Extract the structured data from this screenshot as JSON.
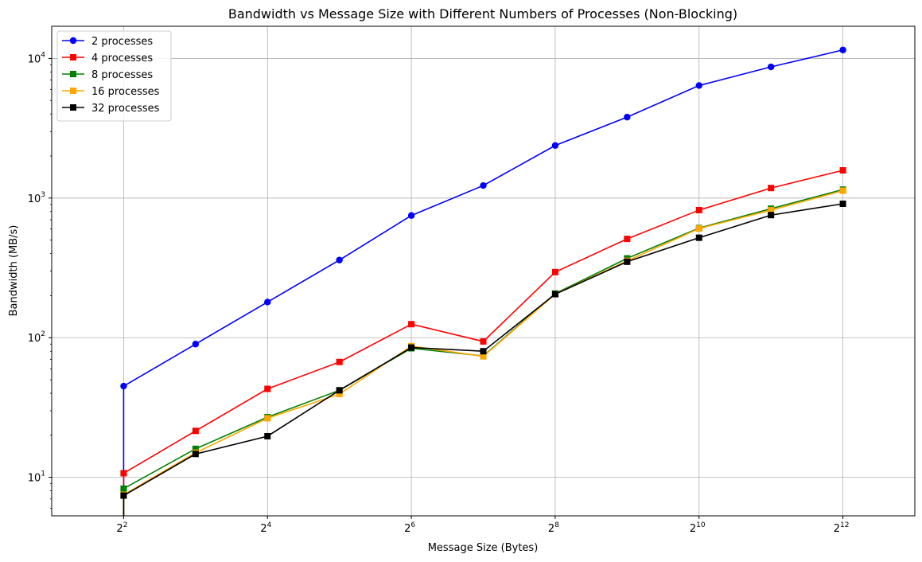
{
  "chart_data": {
    "type": "line",
    "title": "Bandwidth vs Message Size with Different Numbers of Processes (Non-Blocking)",
    "xlabel": "Message Size (Bytes)",
    "ylabel": "Bandwidth (MB/s)",
    "xscale": "log2",
    "yscale": "log10",
    "xlim": [
      2,
      8192
    ],
    "ylim": [
      5.3,
      17000
    ],
    "x_ticks": [
      {
        "base": "2",
        "exp": "2",
        "value": 4
      },
      {
        "base": "2",
        "exp": "4",
        "value": 16
      },
      {
        "base": "2",
        "exp": "6",
        "value": 64
      },
      {
        "base": "2",
        "exp": "8",
        "value": 256
      },
      {
        "base": "2",
        "exp": "10",
        "value": 1024
      },
      {
        "base": "2",
        "exp": "12",
        "value": 4096
      }
    ],
    "y_ticks": [
      {
        "base": "10",
        "exp": "1",
        "value": 10
      },
      {
        "base": "10",
        "exp": "2",
        "value": 100
      },
      {
        "base": "10",
        "exp": "3",
        "value": 1000
      },
      {
        "base": "10",
        "exp": "4",
        "value": 10000
      }
    ],
    "grid": true,
    "legend_position": "top-left",
    "series": [
      {
        "name": "2 processes",
        "color": "#0000ff",
        "marker": "circle",
        "x": [
          4,
          4,
          8,
          16,
          32,
          64,
          128,
          256,
          512,
          1024,
          2048,
          4096
        ],
        "y": [
          5.3,
          45,
          90,
          180,
          360,
          750,
          1230,
          2380,
          3800,
          6400,
          8700,
          11500
        ]
      },
      {
        "name": "4 processes",
        "color": "#ff0000",
        "marker": "square",
        "x": [
          4,
          4,
          8,
          16,
          32,
          64,
          128,
          256,
          512,
          1024,
          2048,
          4096
        ],
        "y": [
          5.3,
          10.7,
          21.5,
          43,
          67,
          125,
          94,
          295,
          510,
          820,
          1180,
          1580
        ]
      },
      {
        "name": "8 processes",
        "color": "#008000",
        "marker": "square",
        "x": [
          4,
          4,
          8,
          16,
          32,
          64,
          128,
          256,
          512,
          1024,
          2048,
          4096
        ],
        "y": [
          5.3,
          8.3,
          16,
          27,
          42,
          84,
          74,
          207,
          370,
          610,
          840,
          1150
        ]
      },
      {
        "name": "16 processes",
        "color": "#ffa500",
        "marker": "square",
        "x": [
          4,
          4,
          8,
          16,
          32,
          64,
          128,
          256,
          512,
          1024,
          2048,
          4096
        ],
        "y": [
          5.3,
          7.5,
          15,
          26.5,
          39.5,
          87,
          73.5,
          205,
          355,
          605,
          820,
          1130
        ]
      },
      {
        "name": "32 processes",
        "color": "#000000",
        "marker": "square",
        "x": [
          4,
          4,
          8,
          16,
          32,
          64,
          128,
          256,
          512,
          1024,
          2048,
          4096
        ],
        "y": [
          5.3,
          7.4,
          14.7,
          19.7,
          42,
          85,
          80,
          205,
          350,
          520,
          755,
          910
        ]
      }
    ]
  }
}
